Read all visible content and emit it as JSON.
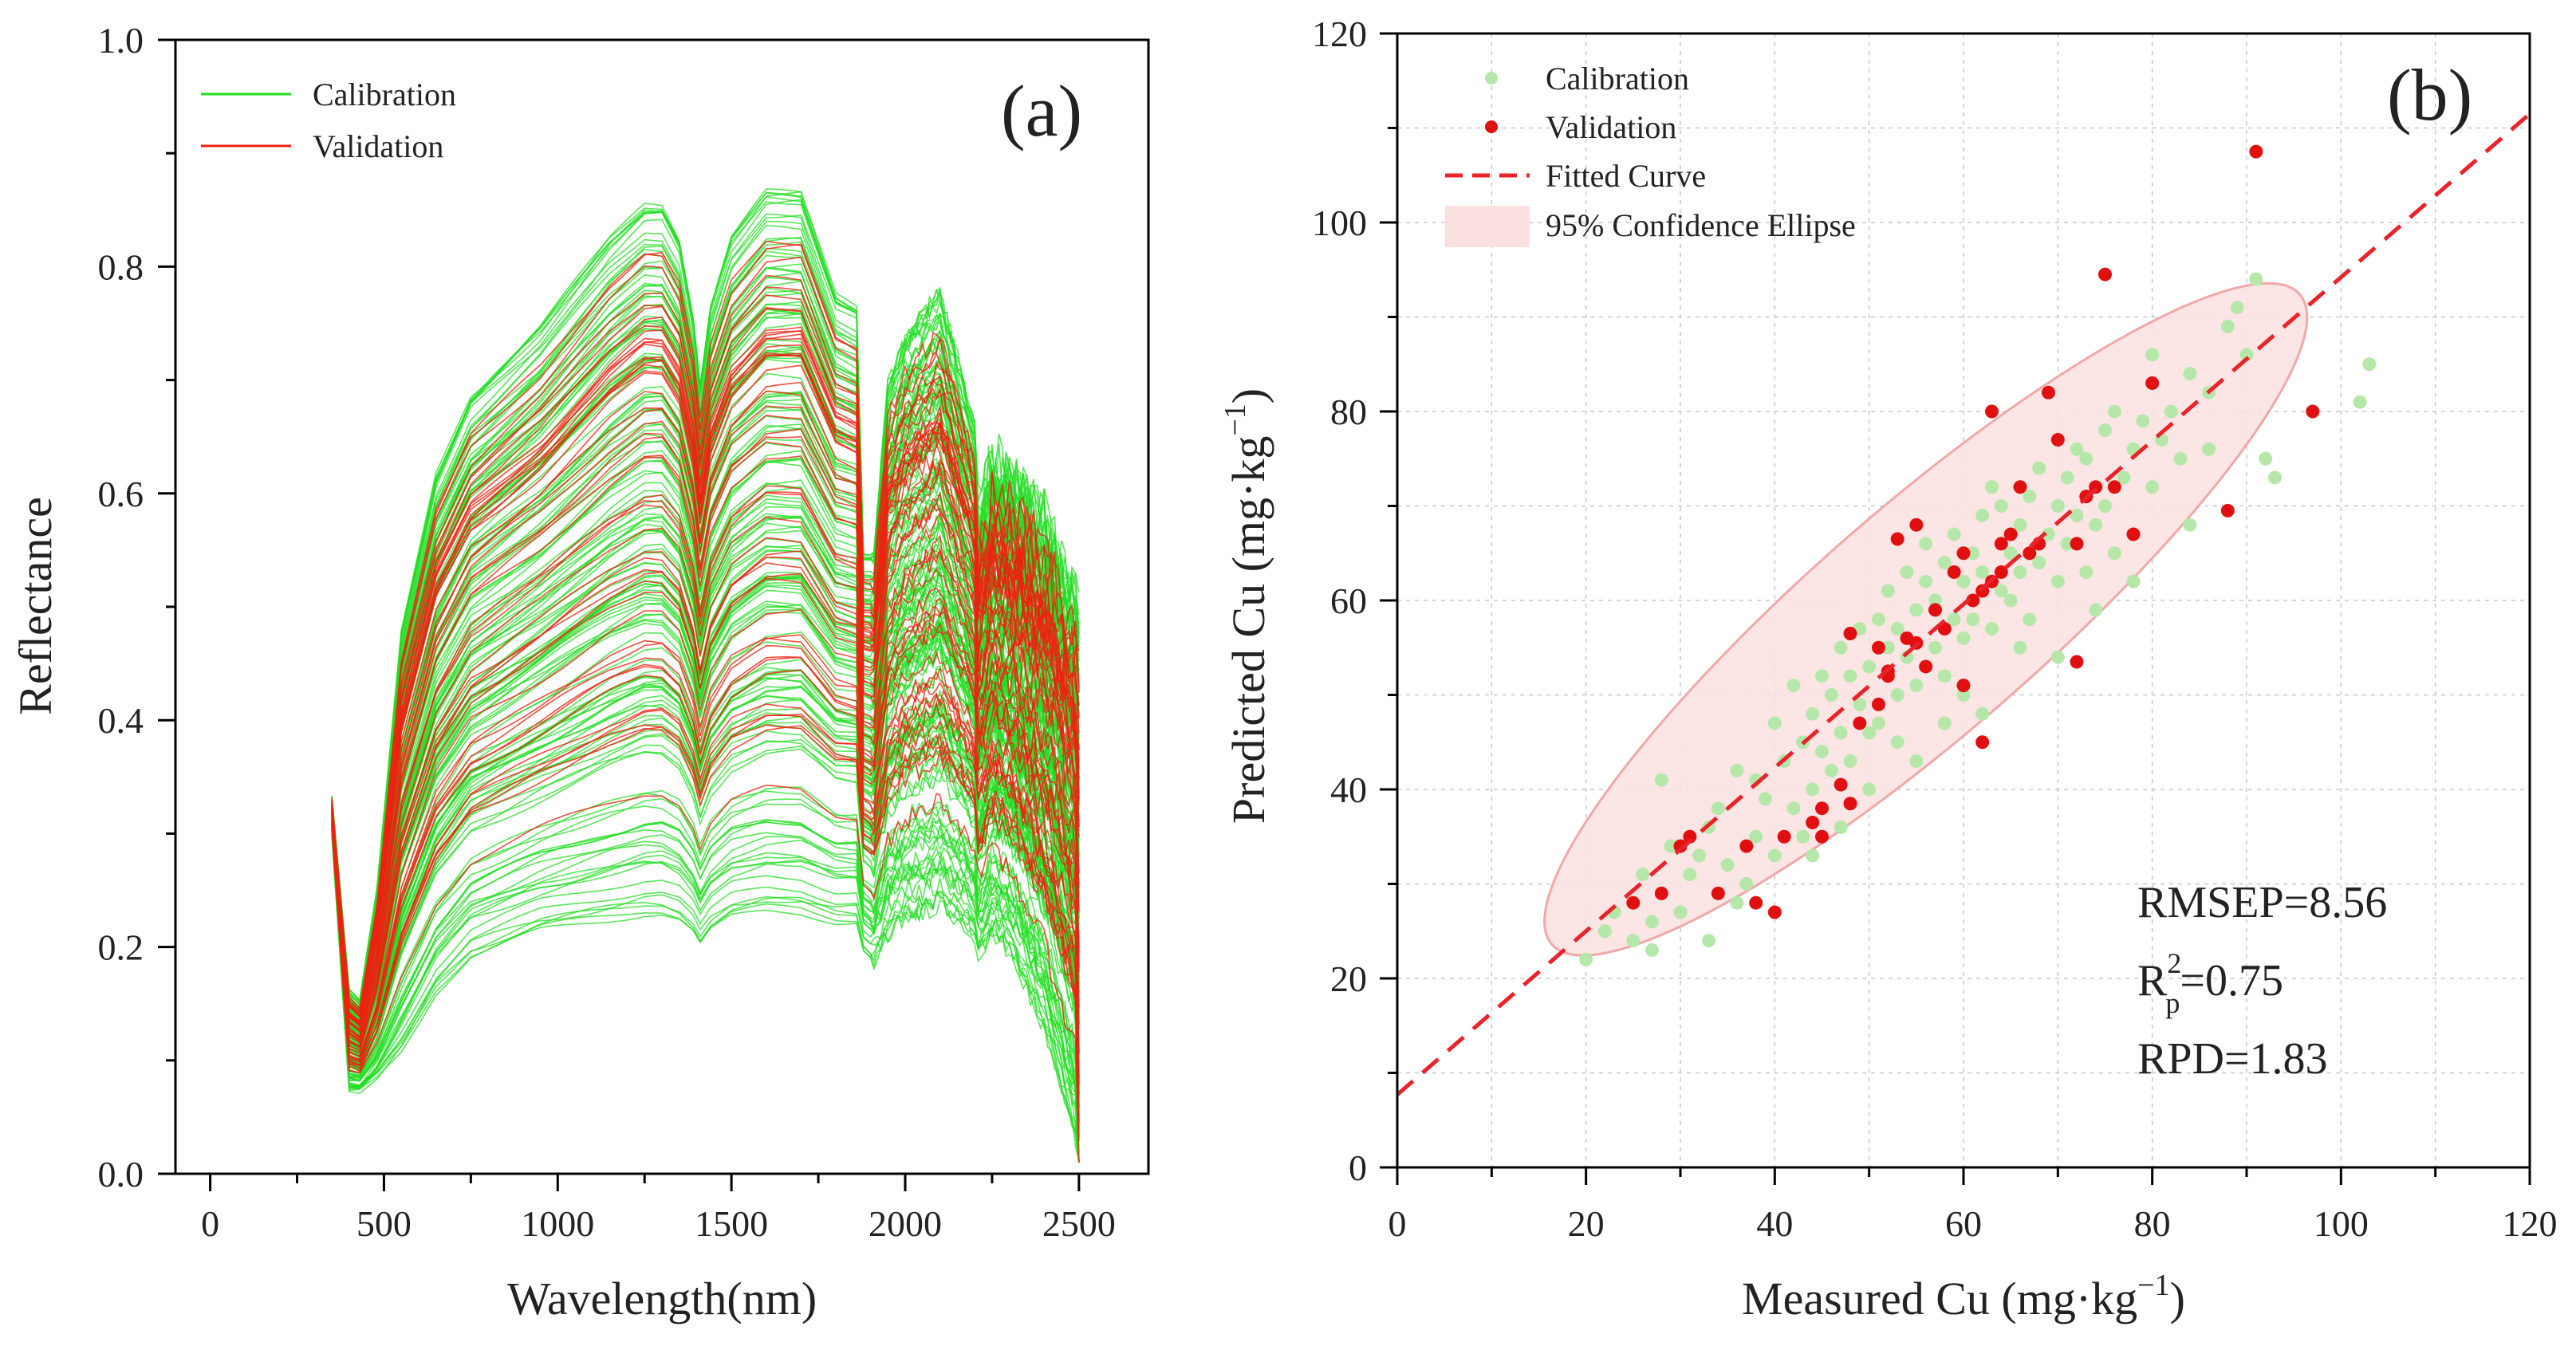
{
  "chart_data": [
    {
      "panel": "a",
      "type": "line",
      "panel_label": "(a)",
      "xlabel": "Wavelength(nm)",
      "ylabel": "Reflectance",
      "xlim": [
        -100,
        2700
      ],
      "ylim": [
        0.0,
        1.0
      ],
      "x_ticks": [
        0,
        500,
        1000,
        1500,
        2000,
        2500
      ],
      "x_tick_labels": [
        "0",
        "500",
        "1000",
        "1500",
        "2000",
        "2500"
      ],
      "y_ticks": [
        0.0,
        0.2,
        0.4,
        0.6,
        0.8,
        1.0
      ],
      "y_tick_labels": [
        "0.0",
        "0.2",
        "0.4",
        "0.6",
        "0.8",
        "1.0"
      ],
      "grid": false,
      "legend_position": "top-left",
      "series": [
        {
          "name": "Calibration",
          "color": "#22dd22",
          "curve_count": 150
        },
        {
          "name": "Validation",
          "color": "#ee2211",
          "curve_count": 50
        }
      ],
      "spectral_range_nm": [
        350,
        2500
      ],
      "reflectance_profile": {
        "wavelengths": [
          350,
          400,
          430,
          480,
          550,
          650,
          750,
          850,
          950,
          1050,
          1150,
          1250,
          1300,
          1350,
          1390,
          1410,
          1440,
          1500,
          1600,
          1700,
          1800,
          1860,
          1880,
          1910,
          1950,
          2000,
          2100,
          2150,
          2200,
          2210,
          2250,
          2300,
          2400,
          2500
        ],
        "min_curve": [
          0.3,
          0.07,
          0.07,
          0.08,
          0.1,
          0.15,
          0.18,
          0.19,
          0.2,
          0.205,
          0.21,
          0.215,
          0.215,
          0.21,
          0.2,
          0.19,
          0.2,
          0.21,
          0.215,
          0.215,
          0.21,
          0.21,
          0.19,
          0.18,
          0.2,
          0.21,
          0.22,
          0.21,
          0.2,
          0.18,
          0.2,
          0.19,
          0.12,
          0.01
        ],
        "max_curve": [
          0.33,
          0.16,
          0.15,
          0.25,
          0.48,
          0.62,
          0.69,
          0.72,
          0.75,
          0.79,
          0.83,
          0.86,
          0.86,
          0.83,
          0.76,
          0.7,
          0.77,
          0.83,
          0.87,
          0.87,
          0.78,
          0.77,
          0.55,
          0.55,
          0.7,
          0.74,
          0.78,
          0.72,
          0.66,
          0.58,
          0.63,
          0.62,
          0.58,
          0.5
        ]
      }
    },
    {
      "panel": "b",
      "type": "scatter",
      "panel_label": "(b)",
      "xlabel": "Measured Cu (mg·kg",
      "ylabel": "Predicted Cu (mg·kg",
      "unit_superscript": "−1",
      "xlim": [
        0,
        120
      ],
      "ylim": [
        0,
        120
      ],
      "x_ticks": [
        0,
        20,
        40,
        60,
        80,
        100,
        120
      ],
      "x_tick_labels": [
        "0",
        "20",
        "40",
        "60",
        "80",
        "100",
        "120"
      ],
      "y_ticks": [
        0,
        20,
        40,
        60,
        80,
        100,
        120
      ],
      "y_tick_labels": [
        "0",
        "20",
        "40",
        "60",
        "80",
        "100",
        "120"
      ],
      "grid": true,
      "legend_position": "top-left",
      "legend": {
        "calibration": "Calibration",
        "validation": "Validation",
        "fitted": "Fitted Curve",
        "ellipse": "95% Confidence Ellipse"
      },
      "colors": {
        "calibration": "#b5e8a8",
        "validation": "#e01010",
        "fitted": "#e8232a",
        "ellipse_fill": "#fbe0e0",
        "ellipse_stroke": "#f0a8a8"
      },
      "fitted_curve": {
        "intercept": 7.7,
        "slope": 0.865
      },
      "confidence_ellipse": {
        "center": [
          56,
          58
        ],
        "semi_major": 52.5,
        "semi_minor": 12,
        "angle_deg": 41
      },
      "metrics": {
        "rmsep": "RMSEP=8.56",
        "r_prefix": "R",
        "r_sup": "2",
        "r_sub": "p",
        "r_value": "=0.75",
        "rpd": "RPD=1.83"
      },
      "validation_points": [
        [
          25,
          28
        ],
        [
          28,
          29
        ],
        [
          30,
          34
        ],
        [
          31,
          35
        ],
        [
          34,
          29
        ],
        [
          37,
          34
        ],
        [
          38,
          28
        ],
        [
          40,
          27
        ],
        [
          41,
          35
        ],
        [
          44,
          36.5
        ],
        [
          45,
          38
        ],
        [
          45,
          35
        ],
        [
          47,
          40.5
        ],
        [
          48,
          38.5
        ],
        [
          48,
          56.5
        ],
        [
          49,
          47
        ],
        [
          51,
          49
        ],
        [
          51,
          55
        ],
        [
          52,
          52.5
        ],
        [
          52,
          52
        ],
        [
          53,
          66.5
        ],
        [
          54,
          56
        ],
        [
          55,
          55.5
        ],
        [
          55,
          68
        ],
        [
          56,
          53
        ],
        [
          57,
          59
        ],
        [
          58,
          57
        ],
        [
          59,
          63
        ],
        [
          60,
          51
        ],
        [
          61,
          60
        ],
        [
          62,
          61
        ],
        [
          62,
          45
        ],
        [
          63,
          80
        ],
        [
          63,
          62
        ],
        [
          64,
          66
        ],
        [
          65,
          67
        ],
        [
          66,
          72
        ],
        [
          67,
          65
        ],
        [
          68,
          66
        ],
        [
          69,
          82
        ],
        [
          70,
          77
        ],
        [
          72,
          66
        ],
        [
          73,
          71
        ],
        [
          74,
          72
        ],
        [
          75,
          94.5
        ],
        [
          76,
          72
        ],
        [
          78,
          67
        ],
        [
          80,
          83
        ],
        [
          88,
          69.5
        ],
        [
          91,
          107.5
        ],
        [
          97,
          80
        ],
        [
          72,
          53.5
        ],
        [
          64,
          63
        ],
        [
          60,
          65
        ]
      ],
      "calibration_points": [
        [
          20,
          22
        ],
        [
          22,
          25
        ],
        [
          23,
          27
        ],
        [
          25,
          24
        ],
        [
          26,
          31
        ],
        [
          27,
          26
        ],
        [
          28,
          41
        ],
        [
          29,
          34
        ],
        [
          30,
          27
        ],
        [
          31,
          31
        ],
        [
          32,
          33
        ],
        [
          33,
          36
        ],
        [
          34,
          38
        ],
        [
          35,
          32
        ],
        [
          36,
          42
        ],
        [
          37,
          30
        ],
        [
          38,
          35
        ],
        [
          38,
          41
        ],
        [
          39,
          39
        ],
        [
          40,
          33
        ],
        [
          40,
          47
        ],
        [
          41,
          43
        ],
        [
          42,
          38
        ],
        [
          42,
          51
        ],
        [
          43,
          35
        ],
        [
          43,
          45
        ],
        [
          44,
          40
        ],
        [
          44,
          48
        ],
        [
          45,
          44
        ],
        [
          45,
          52
        ],
        [
          46,
          42
        ],
        [
          46,
          50
        ],
        [
          47,
          46
        ],
        [
          47,
          55
        ],
        [
          48,
          43
        ],
        [
          48,
          52
        ],
        [
          49,
          49
        ],
        [
          49,
          57
        ],
        [
          50,
          46
        ],
        [
          50,
          53
        ],
        [
          51,
          58
        ],
        [
          51,
          47
        ],
        [
          52,
          55
        ],
        [
          52,
          61
        ],
        [
          53,
          50
        ],
        [
          53,
          57
        ],
        [
          54,
          54
        ],
        [
          54,
          63
        ],
        [
          55,
          51
        ],
        [
          55,
          59
        ],
        [
          56,
          62
        ],
        [
          56,
          66
        ],
        [
          57,
          55
        ],
        [
          57,
          60
        ],
        [
          58,
          64
        ],
        [
          58,
          52
        ],
        [
          59,
          58
        ],
        [
          59,
          67
        ],
        [
          60,
          62
        ],
        [
          60,
          56
        ],
        [
          61,
          65
        ],
        [
          61,
          58
        ],
        [
          62,
          69
        ],
        [
          62,
          63
        ],
        [
          63,
          57
        ],
        [
          63,
          72
        ],
        [
          64,
          61
        ],
        [
          64,
          70
        ],
        [
          65,
          65
        ],
        [
          65,
          60
        ],
        [
          66,
          68
        ],
        [
          66,
          63
        ],
        [
          67,
          71
        ],
        [
          67,
          58
        ],
        [
          68,
          64
        ],
        [
          68,
          74
        ],
        [
          69,
          67
        ],
        [
          70,
          70
        ],
        [
          70,
          62
        ],
        [
          71,
          73
        ],
        [
          71,
          66
        ],
        [
          72,
          69
        ],
        [
          72,
          76
        ],
        [
          73,
          63
        ],
        [
          73,
          75
        ],
        [
          74,
          68
        ],
        [
          75,
          78
        ],
        [
          75,
          70
        ],
        [
          76,
          65
        ],
        [
          76,
          80
        ],
        [
          77,
          73
        ],
        [
          78,
          76
        ],
        [
          78,
          62
        ],
        [
          79,
          79
        ],
        [
          80,
          72
        ],
        [
          80,
          86
        ],
        [
          81,
          77
        ],
        [
          82,
          80
        ],
        [
          83,
          75
        ],
        [
          84,
          84
        ],
        [
          86,
          82
        ],
        [
          88,
          89
        ],
        [
          89,
          91
        ],
        [
          90,
          86
        ],
        [
          91,
          94
        ],
        [
          92,
          75
        ],
        [
          93,
          73
        ],
        [
          102,
          81
        ],
        [
          103,
          85
        ],
        [
          66,
          55
        ],
        [
          58,
          47
        ],
        [
          47,
          36
        ],
        [
          53,
          45
        ],
        [
          62,
          48
        ],
        [
          70,
          54
        ],
        [
          36,
          28
        ],
        [
          44,
          33
        ],
        [
          55,
          43
        ],
        [
          74,
          59
        ],
        [
          84,
          68
        ],
        [
          50,
          40
        ],
        [
          60,
          50
        ],
        [
          33,
          24
        ],
        [
          27,
          23
        ],
        [
          86,
          76
        ]
      ]
    }
  ]
}
